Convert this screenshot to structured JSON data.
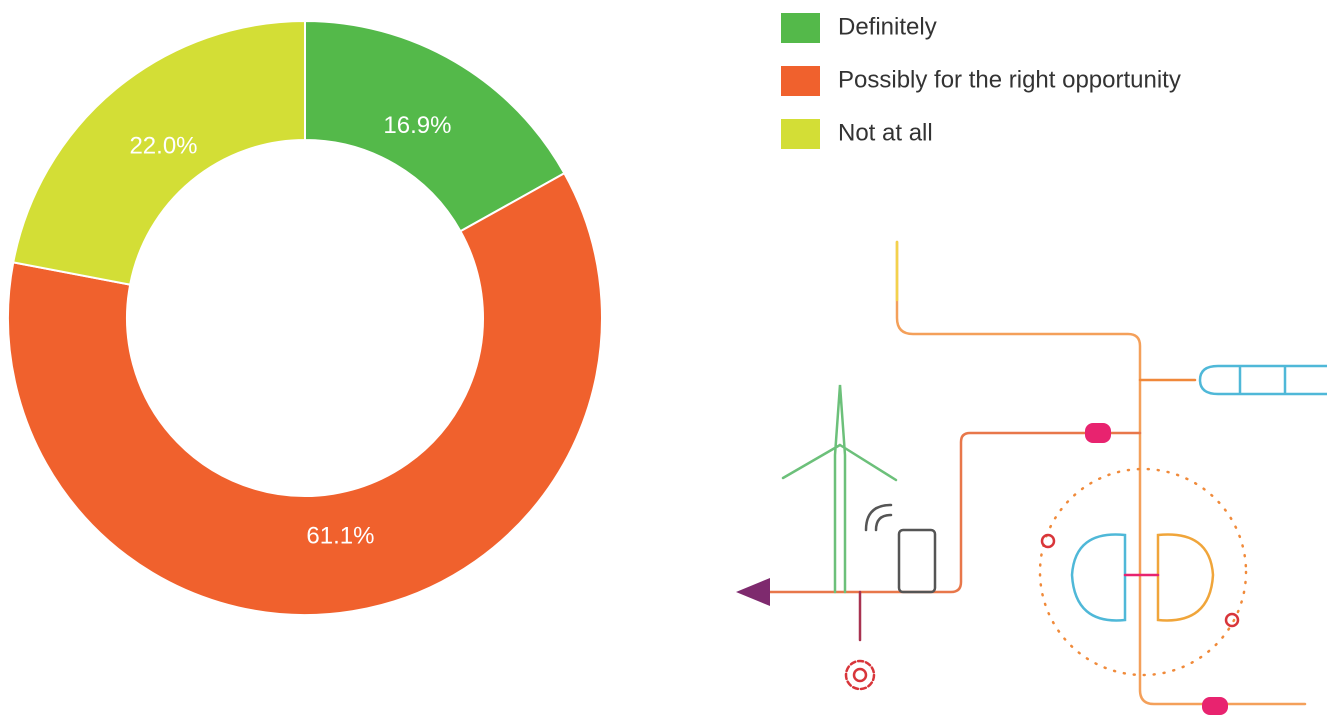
{
  "chart_data": {
    "type": "donut",
    "categories": [
      "Definitely",
      "Possibly for the right opportunity",
      "Not at all"
    ],
    "values": [
      16.9,
      61.1,
      22.0
    ],
    "value_labels": [
      "16.9%",
      "61.1%",
      "22.0%"
    ],
    "colors": [
      "#54b94a",
      "#f0612d",
      "#d3de36"
    ],
    "legend": "top-right"
  }
}
